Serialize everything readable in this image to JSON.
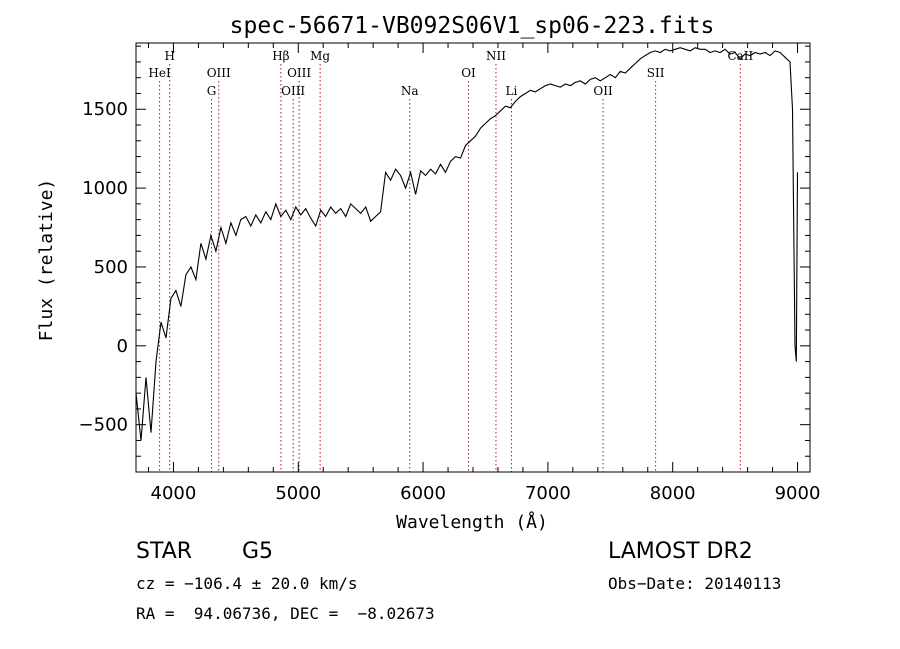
{
  "chart_data": {
    "type": "line",
    "title": "spec-56671-VB092S06V1_sp06-223.fits",
    "xlabel": "Wavelength (Å)",
    "ylabel": "Flux (relative)",
    "xlim": [
      3700,
      9100
    ],
    "ylim": [
      -800,
      1920
    ],
    "x_ticks": [
      4000,
      5000,
      6000,
      7000,
      8000,
      9000
    ],
    "y_ticks": [
      -500,
      0,
      500,
      1000,
      1500
    ],
    "grid": false,
    "series": [
      {
        "values_note_x": "wavelength",
        "x": [
          3700,
          3740,
          3780,
          3820,
          3860,
          3900,
          3940,
          3980,
          4020,
          4060,
          4100,
          4140,
          4180,
          4220,
          4260,
          4300,
          4340,
          4380,
          4420,
          4460,
          4500,
          4540,
          4580,
          4620,
          4660,
          4700,
          4740,
          4780,
          4820,
          4860,
          4900,
          4940,
          4980,
          5020,
          5060,
          5100,
          5140,
          5180,
          5220,
          5260,
          5300,
          5340,
          5380,
          5420,
          5460,
          5500,
          5540,
          5580,
          5620,
          5660,
          5700,
          5740,
          5780,
          5820,
          5860,
          5900,
          5940,
          5980,
          6020,
          6060,
          6100,
          6140,
          6180,
          6220,
          6260,
          6300,
          6340,
          6380,
          6420,
          6460,
          6500,
          6540,
          6580,
          6620,
          6660,
          6700,
          6740,
          6780,
          6820,
          6860,
          6900,
          6940,
          6980,
          7020,
          7060,
          7100,
          7140,
          7180,
          7220,
          7260,
          7300,
          7340,
          7380,
          7420,
          7460,
          7500,
          7540,
          7580,
          7620,
          7660,
          7700,
          7740,
          7780,
          7820,
          7860,
          7900,
          7940,
          7980,
          8020,
          8060,
          8100,
          8140,
          8180,
          8220,
          8260,
          8300,
          8340,
          8380,
          8420,
          8460,
          8500,
          8540,
          8580,
          8620,
          8660,
          8700,
          8740,
          8780,
          8820,
          8860,
          8900,
          8940,
          8960,
          8980,
          8990,
          9000
        ],
        "y": [
          -300,
          -600,
          -200,
          -550,
          -100,
          150,
          50,
          300,
          350,
          250,
          450,
          500,
          420,
          650,
          550,
          700,
          600,
          750,
          650,
          780,
          700,
          800,
          820,
          760,
          830,
          780,
          850,
          800,
          900,
          820,
          860,
          800,
          880,
          830,
          870,
          810,
          760,
          860,
          820,
          880,
          840,
          870,
          820,
          900,
          870,
          840,
          880,
          790,
          820,
          850,
          1100,
          1050,
          1120,
          1080,
          1000,
          1100,
          960,
          1110,
          1080,
          1120,
          1090,
          1150,
          1100,
          1170,
          1200,
          1190,
          1270,
          1300,
          1330,
          1380,
          1410,
          1440,
          1460,
          1490,
          1520,
          1510,
          1550,
          1580,
          1600,
          1620,
          1610,
          1630,
          1650,
          1660,
          1650,
          1640,
          1660,
          1650,
          1670,
          1680,
          1660,
          1690,
          1700,
          1680,
          1700,
          1720,
          1700,
          1740,
          1730,
          1760,
          1790,
          1820,
          1840,
          1860,
          1870,
          1860,
          1880,
          1870,
          1880,
          1890,
          1880,
          1870,
          1890,
          1880,
          1880,
          1860,
          1870,
          1860,
          1880,
          1850,
          1860,
          1820,
          1850,
          1840,
          1860,
          1850,
          1860,
          1840,
          1870,
          1860,
          1830,
          1800,
          1500,
          0,
          -100,
          1100
        ]
      }
    ],
    "annotations": [
      {
        "label": "H",
        "x": 3970,
        "row": 0
      },
      {
        "label": "HeI",
        "x": 3889,
        "row": 1
      },
      {
        "label": "OIII",
        "x": 4363,
        "row": 1
      },
      {
        "label": "G",
        "x": 4305,
        "row": 2
      },
      {
        "label": "Hβ",
        "x": 4861,
        "row": 0
      },
      {
        "label": "OIII",
        "x": 5007,
        "row": 1
      },
      {
        "label": "OIII",
        "x": 4959,
        "row": 2
      },
      {
        "label": "Mg",
        "x": 5175,
        "row": 0
      },
      {
        "label": "Na",
        "x": 5893,
        "row": 2
      },
      {
        "label": "OI",
        "x": 6364,
        "row": 1
      },
      {
        "label": "NII",
        "x": 6584,
        "row": 0
      },
      {
        "label": "Li",
        "x": 6708,
        "row": 2
      },
      {
        "label": "OII",
        "x": 7442,
        "row": 2
      },
      {
        "label": "SII",
        "x": 7863,
        "row": 1
      },
      {
        "label": "CaII",
        "x": 8542,
        "row": 0
      }
    ]
  },
  "info": {
    "object_class": "STAR",
    "subclass": "G5",
    "survey": "LAMOST DR2",
    "velocity": "cz = −106.4 ± 20.0 km/s",
    "obs_date": "Obs−Date: 20140113",
    "coords": "RA =  94.06736, DEC =  −8.02673"
  }
}
